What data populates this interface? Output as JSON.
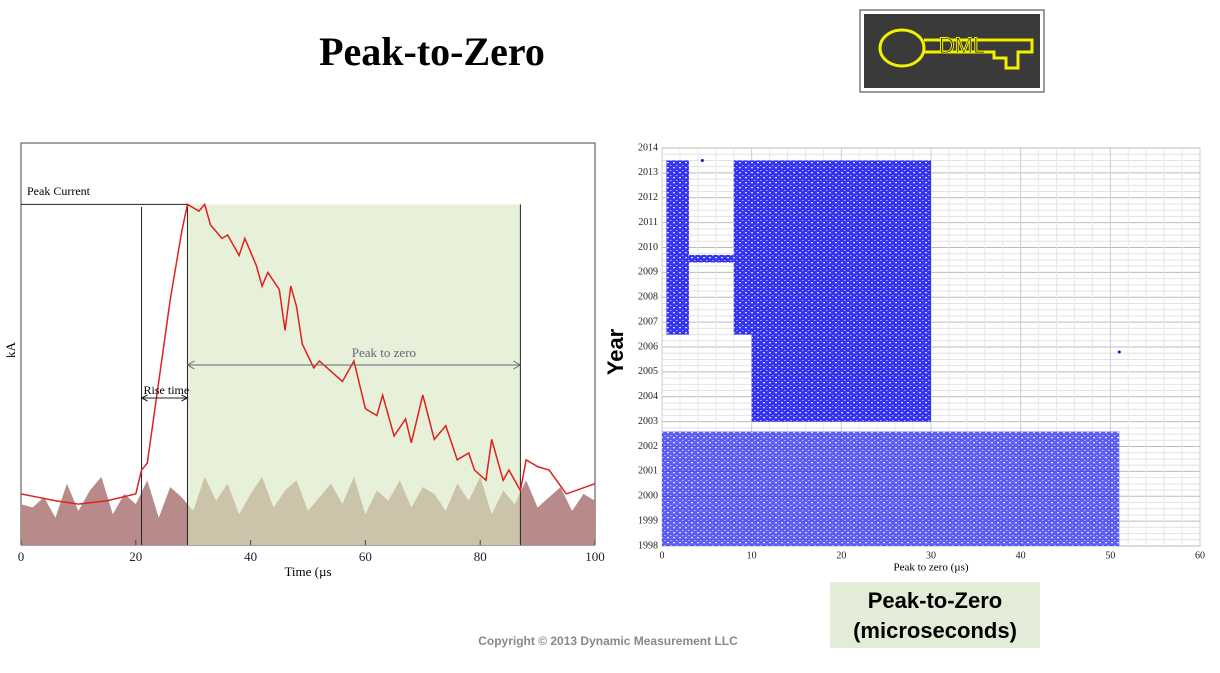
{
  "title": "Peak-to-Zero",
  "logo": {
    "text": "DML"
  },
  "caption": {
    "line1": "Peak-to-Zero",
    "line2": "(microseconds)"
  },
  "copyright": "Copyright © 2013 Dynamic Measurement LLC",
  "chart_data": [
    {
      "type": "line",
      "xlabel": "Time (µs",
      "ylabel": "kA",
      "xlim": [
        0,
        100
      ],
      "xticks": [
        0,
        20,
        40,
        60,
        80,
        100
      ],
      "ylim": [
        0,
        118
      ],
      "annotations": {
        "peak": "Peak Current",
        "rise": "Rise time",
        "zero": "Peak to zero"
      },
      "peak_current": 100,
      "rise_start": 21,
      "peak_time": 29,
      "zero_time": 87,
      "series": [
        {
          "color": "#e02020",
          "x": [
            0,
            3,
            6,
            10,
            15,
            20,
            21,
            22,
            24,
            26,
            28,
            29,
            31,
            32,
            33,
            35,
            36,
            38,
            39,
            41,
            42,
            43,
            45,
            46,
            47,
            48,
            49,
            51,
            52,
            54,
            56,
            57,
            58,
            60,
            62,
            63,
            65,
            67,
            68,
            70,
            72,
            74,
            76,
            78,
            79,
            81,
            82,
            84,
            85,
            87,
            88,
            90,
            92,
            95,
            100
          ],
          "values": [
            15,
            14,
            13,
            12,
            13,
            15,
            22,
            24,
            48,
            72,
            92,
            100,
            98,
            100,
            94,
            90,
            91,
            85,
            90,
            82,
            76,
            80,
            75,
            63,
            76,
            70,
            59,
            52,
            54,
            51,
            48,
            51,
            54,
            40,
            38,
            44,
            32,
            37,
            30,
            44,
            31,
            35,
            25,
            27,
            22,
            19,
            31,
            19,
            22,
            16,
            25,
            23,
            22,
            15,
            18
          ]
        },
        {
          "color": "#b88a8a",
          "x": [
            0,
            2,
            4,
            6,
            8,
            10,
            12,
            14,
            16,
            18,
            20,
            22,
            24,
            26,
            28,
            30,
            32,
            34,
            36,
            38,
            40,
            42,
            44,
            46,
            48,
            50,
            52,
            54,
            56,
            58,
            60,
            62,
            64,
            66,
            68,
            70,
            72,
            74,
            76,
            78,
            80,
            82,
            84,
            86,
            88,
            90,
            92,
            94,
            96,
            98,
            100
          ],
          "values": [
            12,
            11,
            14,
            8,
            18,
            10,
            16,
            20,
            9,
            15,
            12,
            19,
            8,
            17,
            14,
            10,
            20,
            13,
            18,
            9,
            15,
            20,
            11,
            16,
            19,
            10,
            14,
            18,
            12,
            20,
            9,
            16,
            13,
            19,
            11,
            17,
            15,
            10,
            18,
            13,
            20,
            9,
            16,
            12,
            19,
            11,
            14,
            17,
            10,
            15,
            13
          ]
        }
      ]
    },
    {
      "type": "scatter",
      "xlabel": "Peak to zero (µs)",
      "ylabel": "Year",
      "xlim": [
        0,
        60
      ],
      "xticks": [
        0,
        10,
        20,
        30,
        40,
        50,
        60
      ],
      "ylim": [
        1998,
        2014
      ],
      "yticks": [
        1998,
        1999,
        2000,
        2001,
        2002,
        2003,
        2004,
        2005,
        2006,
        2007,
        2008,
        2009,
        2010,
        2011,
        2012,
        2013,
        2014
      ],
      "color": "#1010e0",
      "regions": [
        [
          0.5,
          3,
          2006.5,
          2013.5
        ],
        [
          3,
          8,
          2009.4,
          2009.7
        ],
        [
          8,
          30,
          2006.5,
          2013.5
        ],
        [
          10,
          30,
          2003,
          2006.5
        ],
        [
          0,
          51,
          1998,
          2002.6
        ]
      ],
      "points": [
        [
          51,
          2005.8
        ],
        [
          4.5,
          2013.5
        ]
      ]
    }
  ]
}
